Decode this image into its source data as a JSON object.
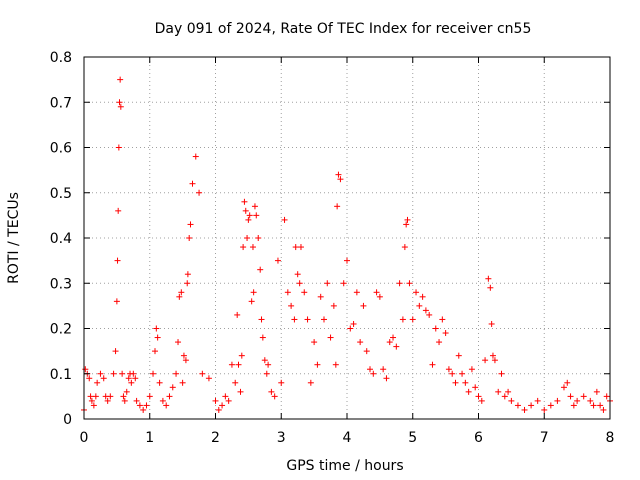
{
  "chart_data": {
    "type": "scatter",
    "title": "Day 091 of 2024, Rate Of TEC Index for receiver cn55",
    "xlabel": "GPS time / hours",
    "ylabel": "ROTI / TECUs",
    "xlim": [
      0,
      8
    ],
    "ylim": [
      0,
      0.8
    ],
    "xticks": [
      0,
      1,
      2,
      3,
      4,
      5,
      6,
      7,
      8
    ],
    "yticks": [
      0,
      0.1,
      0.2,
      0.3,
      0.4,
      0.5,
      0.6,
      0.7,
      0.8
    ],
    "xtick_labels": [
      "0",
      "1",
      "2",
      "3",
      "4",
      "5",
      "6",
      "7",
      "8"
    ],
    "ytick_labels": [
      "0",
      "0.1",
      "0.2",
      "0.3",
      "0.4",
      "0.5",
      "0.6",
      "0.7",
      "0.8"
    ],
    "grid": true,
    "marker": "+",
    "color": "#ff0000",
    "series": [
      {
        "name": "ROTI",
        "x": [
          0.0,
          0.02,
          0.05,
          0.08,
          0.1,
          0.12,
          0.15,
          0.18,
          0.2,
          0.25,
          0.3,
          0.33,
          0.36,
          0.4,
          0.45,
          0.48,
          0.5,
          0.51,
          0.52,
          0.53,
          0.54,
          0.55,
          0.56,
          0.58,
          0.6,
          0.62,
          0.65,
          0.68,
          0.7,
          0.72,
          0.75,
          0.78,
          0.8,
          0.85,
          0.9,
          0.95,
          1.0,
          1.05,
          1.08,
          1.1,
          1.12,
          1.15,
          1.2,
          1.25,
          1.3,
          1.35,
          1.4,
          1.43,
          1.45,
          1.48,
          1.5,
          1.52,
          1.55,
          1.57,
          1.58,
          1.6,
          1.62,
          1.65,
          1.7,
          1.75,
          1.8,
          1.9,
          2.0,
          2.05,
          2.1,
          2.15,
          2.2,
          2.25,
          2.3,
          2.33,
          2.35,
          2.38,
          2.4,
          2.42,
          2.44,
          2.46,
          2.48,
          2.5,
          2.52,
          2.55,
          2.57,
          2.58,
          2.6,
          2.62,
          2.65,
          2.68,
          2.7,
          2.72,
          2.75,
          2.78,
          2.8,
          2.85,
          2.9,
          2.95,
          3.0,
          3.05,
          3.1,
          3.15,
          3.2,
          3.22,
          3.25,
          3.28,
          3.3,
          3.35,
          3.4,
          3.45,
          3.5,
          3.55,
          3.6,
          3.65,
          3.7,
          3.75,
          3.8,
          3.83,
          3.85,
          3.87,
          3.9,
          3.95,
          4.0,
          4.05,
          4.1,
          4.15,
          4.2,
          4.25,
          4.3,
          4.35,
          4.4,
          4.45,
          4.5,
          4.55,
          4.6,
          4.65,
          4.7,
          4.75,
          4.8,
          4.85,
          4.88,
          4.9,
          4.92,
          4.95,
          5.0,
          5.05,
          5.1,
          5.15,
          5.2,
          5.25,
          5.3,
          5.35,
          5.4,
          5.45,
          5.5,
          5.55,
          5.6,
          5.65,
          5.7,
          5.75,
          5.8,
          5.85,
          5.9,
          5.95,
          6.0,
          6.05,
          6.1,
          6.15,
          6.18,
          6.2,
          6.22,
          6.25,
          6.3,
          6.35,
          6.4,
          6.45,
          6.5,
          6.6,
          6.7,
          6.8,
          6.9,
          7.0,
          7.1,
          7.2,
          7.3,
          7.35,
          7.4,
          7.45,
          7.5,
          7.6,
          7.7,
          7.75,
          7.8,
          7.85,
          7.9,
          7.95,
          8.0
        ],
        "y": [
          0.02,
          0.11,
          0.1,
          0.09,
          0.05,
          0.04,
          0.03,
          0.05,
          0.08,
          0.1,
          0.09,
          0.05,
          0.04,
          0.05,
          0.1,
          0.15,
          0.26,
          0.35,
          0.46,
          0.6,
          0.7,
          0.75,
          0.69,
          0.1,
          0.05,
          0.04,
          0.06,
          0.09,
          0.1,
          0.08,
          0.1,
          0.09,
          0.04,
          0.03,
          0.02,
          0.03,
          0.05,
          0.1,
          0.15,
          0.2,
          0.18,
          0.08,
          0.04,
          0.03,
          0.05,
          0.07,
          0.1,
          0.17,
          0.27,
          0.28,
          0.08,
          0.14,
          0.13,
          0.3,
          0.32,
          0.4,
          0.43,
          0.52,
          0.58,
          0.5,
          0.1,
          0.09,
          0.04,
          0.02,
          0.03,
          0.05,
          0.04,
          0.12,
          0.08,
          0.23,
          0.12,
          0.06,
          0.14,
          0.38,
          0.48,
          0.46,
          0.4,
          0.44,
          0.45,
          0.26,
          0.38,
          0.28,
          0.47,
          0.45,
          0.4,
          0.33,
          0.22,
          0.18,
          0.13,
          0.1,
          0.12,
          0.06,
          0.05,
          0.35,
          0.08,
          0.44,
          0.28,
          0.25,
          0.22,
          0.38,
          0.32,
          0.3,
          0.38,
          0.28,
          0.22,
          0.08,
          0.17,
          0.12,
          0.27,
          0.22,
          0.3,
          0.18,
          0.25,
          0.12,
          0.47,
          0.54,
          0.53,
          0.3,
          0.35,
          0.2,
          0.21,
          0.28,
          0.17,
          0.25,
          0.15,
          0.11,
          0.1,
          0.28,
          0.27,
          0.11,
          0.09,
          0.17,
          0.18,
          0.16,
          0.3,
          0.22,
          0.38,
          0.43,
          0.44,
          0.3,
          0.22,
          0.28,
          0.25,
          0.27,
          0.24,
          0.23,
          0.12,
          0.2,
          0.17,
          0.22,
          0.19,
          0.11,
          0.1,
          0.08,
          0.14,
          0.1,
          0.08,
          0.06,
          0.11,
          0.07,
          0.05,
          0.04,
          0.13,
          0.31,
          0.29,
          0.21,
          0.14,
          0.13,
          0.06,
          0.1,
          0.05,
          0.06,
          0.04,
          0.03,
          0.02,
          0.03,
          0.04,
          0.02,
          0.03,
          0.04,
          0.07,
          0.08,
          0.05,
          0.03,
          0.04,
          0.05,
          0.04,
          0.03,
          0.06,
          0.03,
          0.02,
          0.05,
          0.04
        ]
      }
    ]
  }
}
